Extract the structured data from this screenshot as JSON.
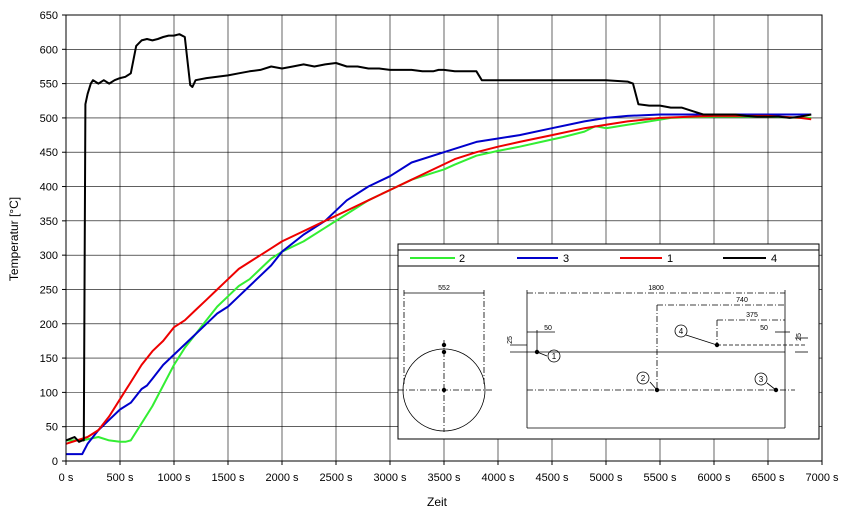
{
  "chart_data": {
    "type": "line",
    "title": "",
    "xlabel": "Zeit",
    "ylabel": "Temperatur [°C]",
    "xlim": [
      0,
      7000
    ],
    "ylim": [
      0,
      650
    ],
    "xticks": [
      "0 s",
      "500 s",
      "1000 s",
      "1500 s",
      "2000 s",
      "2500 s",
      "3000 s",
      "3500 s",
      "4000 s",
      "4500 s",
      "5000 s",
      "5500 s",
      "6000 s",
      "6500 s",
      "7000 s"
    ],
    "yticks": [
      "0",
      "50",
      "100",
      "150",
      "200",
      "250",
      "300",
      "350",
      "400",
      "450",
      "500",
      "550",
      "600",
      "650"
    ],
    "grid": true,
    "legend_position": "inside lower-right",
    "series": [
      {
        "name": "2",
        "color": "#33ee33",
        "x": [
          0,
          150,
          300,
          400,
          500,
          550,
          600,
          700,
          800,
          900,
          1000,
          1100,
          1200,
          1300,
          1400,
          1500,
          1600,
          1700,
          1800,
          1900,
          2000,
          2200,
          2400,
          2600,
          2800,
          3000,
          3200,
          3400,
          3500,
          3600,
          3800,
          4000,
          4200,
          4400,
          4600,
          4800,
          4900,
          5000,
          5200,
          5400,
          5600,
          6000,
          6500,
          6800,
          6900
        ],
        "y": [
          30,
          30,
          35,
          30,
          28,
          28,
          30,
          55,
          80,
          110,
          140,
          165,
          185,
          205,
          225,
          240,
          255,
          265,
          280,
          295,
          305,
          320,
          340,
          360,
          380,
          395,
          410,
          420,
          425,
          432,
          445,
          452,
          458,
          465,
          472,
          480,
          488,
          485,
          490,
          495,
          500,
          502,
          502,
          500,
          500
        ]
      },
      {
        "name": "3",
        "color": "#0000cc",
        "x": [
          0,
          100,
          150,
          200,
          300,
          400,
          500,
          600,
          700,
          750,
          800,
          900,
          1000,
          1100,
          1200,
          1300,
          1400,
          1500,
          1600,
          1700,
          1800,
          1900,
          2000,
          2200,
          2400,
          2600,
          2800,
          3000,
          3200,
          3500,
          3800,
          4000,
          4200,
          4500,
          4800,
          5000,
          5200,
          5500,
          5800,
          6000,
          6500,
          6800,
          6900
        ],
        "y": [
          10,
          10,
          10,
          25,
          45,
          60,
          75,
          85,
          105,
          110,
          120,
          140,
          155,
          170,
          185,
          200,
          215,
          225,
          240,
          255,
          270,
          285,
          305,
          330,
          350,
          380,
          400,
          415,
          435,
          450,
          465,
          470,
          475,
          485,
          495,
          500,
          503,
          505,
          505,
          505,
          505,
          505,
          505
        ]
      },
      {
        "name": "1",
        "color": "#ee0000",
        "x": [
          0,
          200,
          300,
          400,
          500,
          600,
          700,
          800,
          900,
          1000,
          1100,
          1200,
          1300,
          1400,
          1500,
          1600,
          1700,
          1800,
          1900,
          2000,
          2200,
          2400,
          2600,
          2800,
          3000,
          3200,
          3400,
          3600,
          3800,
          4000,
          4200,
          4500,
          4800,
          5000,
          5200,
          5500,
          5800,
          6000,
          6500,
          6800,
          6900
        ],
        "y": [
          25,
          35,
          45,
          65,
          90,
          115,
          140,
          160,
          175,
          195,
          205,
          220,
          235,
          250,
          265,
          280,
          290,
          300,
          310,
          320,
          335,
          350,
          365,
          380,
          395,
          410,
          425,
          440,
          450,
          458,
          465,
          475,
          485,
          490,
          495,
          500,
          502,
          503,
          503,
          500,
          498
        ]
      },
      {
        "name": "4",
        "color": "#000000",
        "x": [
          0,
          80,
          120,
          150,
          165,
          180,
          200,
          230,
          250,
          300,
          350,
          400,
          450,
          500,
          550,
          600,
          650,
          700,
          750,
          800,
          850,
          900,
          950,
          1000,
          1050,
          1100,
          1150,
          1170,
          1200,
          1300,
          1400,
          1500,
          1600,
          1700,
          1800,
          1900,
          2000,
          2100,
          2200,
          2300,
          2400,
          2500,
          2600,
          2700,
          2800,
          2900,
          3000,
          3100,
          3200,
          3300,
          3400,
          3450,
          3500,
          3600,
          3700,
          3800,
          3850,
          3900,
          4000,
          4200,
          4400,
          4600,
          4800,
          5000,
          5200,
          5250,
          5300,
          5400,
          5500,
          5600,
          5700,
          5800,
          5900,
          6000,
          6100,
          6200,
          6300,
          6400,
          6500,
          6600,
          6700,
          6800,
          6900
        ],
        "y": [
          30,
          35,
          28,
          30,
          30,
          520,
          535,
          550,
          555,
          550,
          555,
          550,
          555,
          558,
          560,
          565,
          605,
          613,
          615,
          613,
          615,
          618,
          620,
          620,
          622,
          618,
          548,
          545,
          555,
          558,
          560,
          562,
          565,
          568,
          570,
          575,
          572,
          575,
          578,
          575,
          578,
          580,
          575,
          575,
          572,
          572,
          570,
          570,
          570,
          568,
          568,
          570,
          570,
          568,
          568,
          568,
          555,
          555,
          555,
          555,
          555,
          555,
          555,
          555,
          553,
          550,
          520,
          518,
          518,
          515,
          515,
          510,
          505,
          505,
          505,
          505,
          503,
          502,
          502,
          502,
          500,
          502,
          505
        ]
      }
    ]
  },
  "legend": {
    "entries": [
      {
        "label": "2",
        "color": "#33ee33"
      },
      {
        "label": "3",
        "color": "#0000cc"
      },
      {
        "label": "1",
        "color": "#ee0000"
      },
      {
        "label": "4",
        "color": "#000000"
      }
    ]
  },
  "schematic": {
    "dim_552": "552",
    "dim_1800": "1800",
    "dim_740": "740",
    "dim_375": "375",
    "dim_50_left": "50",
    "dim_50_right": "50",
    "dim_25_left": "25",
    "dim_25_right": "25",
    "markers": [
      "1",
      "2",
      "3",
      "4"
    ]
  }
}
